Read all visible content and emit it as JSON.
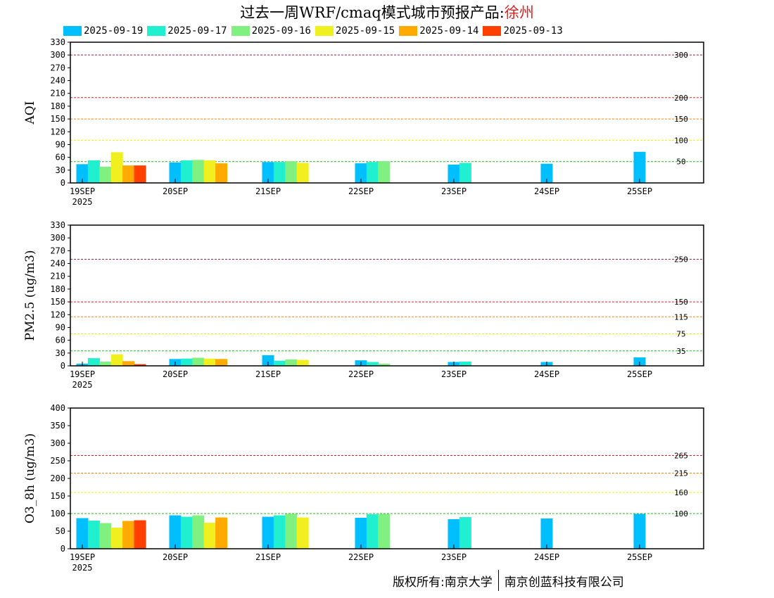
{
  "title": {
    "prefix": "过去一周WRF/cmaq模式城市预报产品:",
    "city": "徐州"
  },
  "legend": [
    {
      "label": "2025-09-19",
      "color": "#00bfff"
    },
    {
      "label": "2025-09-17",
      "color": "#20f0d0"
    },
    {
      "label": "2025-09-16",
      "color": "#80f080"
    },
    {
      "label": "2025-09-15",
      "color": "#f0f020"
    },
    {
      "label": "2025-09-14",
      "color": "#ffaa00"
    },
    {
      "label": "2025-09-13",
      "color": "#ff4000"
    }
  ],
  "footer": {
    "left": "版权所有:南京大学",
    "right": "南京创蓝科技有限公司"
  },
  "chart_data": [
    {
      "type": "bar",
      "ylabel": "AQI",
      "ylim": [
        0,
        330
      ],
      "yticks": [
        0,
        30,
        60,
        90,
        120,
        150,
        180,
        210,
        240,
        270,
        300,
        330
      ],
      "x_tick_labels": [
        "19SEP",
        "20SEP",
        "21SEP",
        "22SEP",
        "23SEP",
        "24SEP",
        "25SEP"
      ],
      "x_year_label": "2025",
      "ref_lines": [
        {
          "value": 300,
          "label": "300",
          "color": "#a0204a"
        },
        {
          "value": 200,
          "label": "200",
          "color": "#e02020"
        },
        {
          "value": 150,
          "label": "150",
          "color": "#ff8000"
        },
        {
          "value": 100,
          "label": "100",
          "color": "#f0f000"
        },
        {
          "value": 50,
          "label": "50",
          "color": "#20c020"
        }
      ],
      "days": [
        [
          44,
          53,
          38,
          72,
          41,
          41
        ],
        [
          48,
          53,
          54,
          53,
          46,
          null
        ],
        [
          49,
          49,
          51,
          47,
          null,
          null
        ],
        [
          46,
          49,
          51,
          null,
          null,
          null
        ],
        [
          43,
          47,
          null,
          null,
          null,
          null
        ],
        [
          45,
          null,
          null,
          null,
          null,
          null
        ],
        [
          73,
          null,
          null,
          null,
          null,
          null
        ]
      ]
    },
    {
      "type": "bar",
      "ylabel": "PM2.5 (ug/m3)",
      "ylim": [
        0,
        330
      ],
      "yticks": [
        0,
        30,
        60,
        90,
        120,
        150,
        180,
        210,
        240,
        270,
        300,
        330
      ],
      "x_tick_labels": [
        "19SEP",
        "20SEP",
        "21SEP",
        "22SEP",
        "23SEP",
        "24SEP",
        "25SEP"
      ],
      "x_year_label": "2025",
      "ref_lines": [
        {
          "value": 250,
          "label": "250",
          "color": "#a0204a"
        },
        {
          "value": 150,
          "label": "150",
          "color": "#e02020"
        },
        {
          "value": 115,
          "label": "115",
          "color": "#ff8000"
        },
        {
          "value": 75,
          "label": "75",
          "color": "#f0f000"
        },
        {
          "value": 35,
          "label": "35",
          "color": "#20c020"
        }
      ],
      "days": [
        [
          5,
          18,
          10,
          27,
          11,
          4
        ],
        [
          16,
          17,
          19,
          17,
          16,
          null
        ],
        [
          25,
          12,
          15,
          14,
          null,
          null
        ],
        [
          13,
          9,
          5,
          null,
          null,
          null
        ],
        [
          9,
          10,
          null,
          null,
          null,
          null
        ],
        [
          9,
          null,
          null,
          null,
          null,
          null
        ],
        [
          20,
          null,
          null,
          null,
          null,
          null
        ]
      ]
    },
    {
      "type": "bar",
      "ylabel": "O3_8h (ug/m3)",
      "ylim": [
        0,
        400
      ],
      "yticks": [
        0,
        50,
        100,
        150,
        200,
        250,
        300,
        350,
        400
      ],
      "x_tick_labels": [
        "19SEP",
        "20SEP",
        "21SEP",
        "22SEP",
        "23SEP",
        "24SEP",
        "25SEP"
      ],
      "x_year_label": "2025",
      "ref_lines": [
        {
          "value": 265,
          "label": "265",
          "color": "#e02020"
        },
        {
          "value": 215,
          "label": "215",
          "color": "#ff8000"
        },
        {
          "value": 160,
          "label": "160",
          "color": "#f0f000"
        },
        {
          "value": 100,
          "label": "100",
          "color": "#20c020"
        }
      ],
      "days": [
        [
          87,
          80,
          73,
          60,
          79,
          81
        ],
        [
          95,
          91,
          95,
          74,
          89,
          null
        ],
        [
          91,
          95,
          99,
          89,
          null,
          null
        ],
        [
          88,
          98,
          99,
          null,
          null,
          null
        ],
        [
          84,
          90,
          null,
          null,
          null,
          null
        ],
        [
          86,
          null,
          null,
          null,
          null,
          null
        ],
        [
          99,
          null,
          null,
          null,
          null,
          null
        ]
      ]
    }
  ]
}
